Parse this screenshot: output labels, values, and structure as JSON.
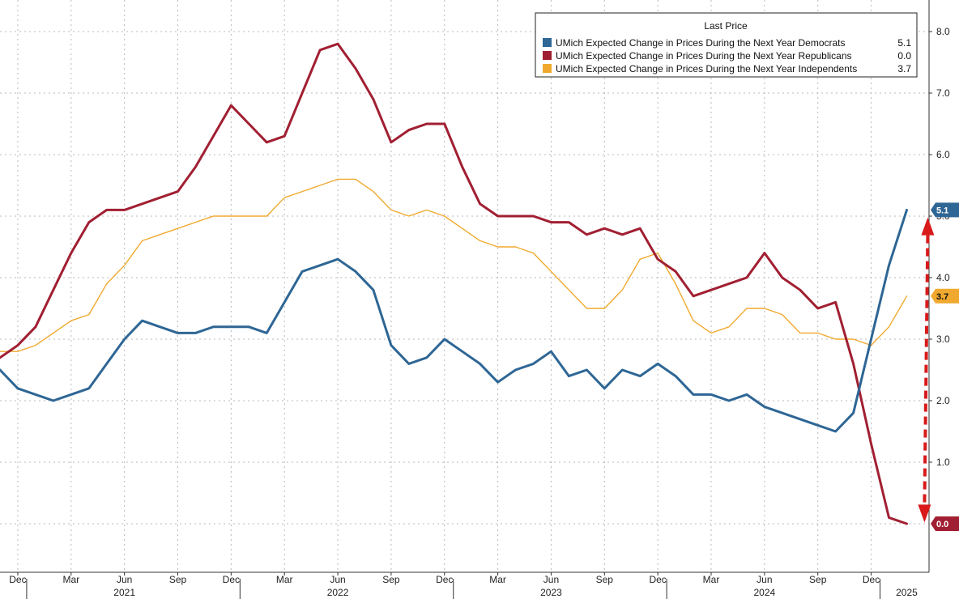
{
  "legend": {
    "title": "Last Price"
  },
  "colors": {
    "democrats": "#2e6695",
    "republicans": "#a11f32",
    "independents": "#f0a92e",
    "arrow": "#d81a1a"
  },
  "chart_data": {
    "type": "line",
    "title": "",
    "xlabel": "",
    "ylabel": "",
    "ylim": [
      -0.5,
      8.5
    ],
    "yticks": [
      1.0,
      2.0,
      3.0,
      4.0,
      5.0,
      6.0,
      7.0,
      8.0
    ],
    "ytick_labels": [
      "1.0",
      "2.0",
      "3.0",
      "4.0",
      "5.0",
      "6.0",
      "7.0",
      "8.0"
    ],
    "grid": true,
    "legend_position": "top-right",
    "x_month_labels": [
      {
        "date": "2020-12",
        "label": "Dec"
      },
      {
        "date": "2021-03",
        "label": "Mar"
      },
      {
        "date": "2021-06",
        "label": "Jun"
      },
      {
        "date": "2021-09",
        "label": "Sep"
      },
      {
        "date": "2021-12",
        "label": "Dec"
      },
      {
        "date": "2022-03",
        "label": "Mar"
      },
      {
        "date": "2022-06",
        "label": "Jun"
      },
      {
        "date": "2022-09",
        "label": "Sep"
      },
      {
        "date": "2022-12",
        "label": "Dec"
      },
      {
        "date": "2023-03",
        "label": "Mar"
      },
      {
        "date": "2023-06",
        "label": "Jun"
      },
      {
        "date": "2023-09",
        "label": "Sep"
      },
      {
        "date": "2023-12",
        "label": "Dec"
      },
      {
        "date": "2024-03",
        "label": "Mar"
      },
      {
        "date": "2024-06",
        "label": "Jun"
      },
      {
        "date": "2024-09",
        "label": "Sep"
      },
      {
        "date": "2024-12",
        "label": "Dec"
      }
    ],
    "x_year_labels": [
      {
        "date": "2021-06",
        "label": "2021"
      },
      {
        "date": "2022-06",
        "label": "2022"
      },
      {
        "date": "2023-06",
        "label": "2023"
      },
      {
        "date": "2024-06",
        "label": "2024"
      },
      {
        "date": "2025-02",
        "label": "2025"
      }
    ],
    "series": [
      {
        "name": "UMich Expected Change in Prices During the Next Year Democrats",
        "key": "democrats",
        "last_price": "5.1",
        "line_width": 3,
        "points": [
          [
            "2020-11",
            2.5
          ],
          [
            "2020-12",
            2.2
          ],
          [
            "2021-01",
            2.1
          ],
          [
            "2021-02",
            2.0
          ],
          [
            "2021-03",
            2.1
          ],
          [
            "2021-04",
            2.2
          ],
          [
            "2021-05",
            2.6
          ],
          [
            "2021-06",
            3.0
          ],
          [
            "2021-07",
            3.3
          ],
          [
            "2021-08",
            3.2
          ],
          [
            "2021-09",
            3.1
          ],
          [
            "2021-10",
            3.1
          ],
          [
            "2021-11",
            3.2
          ],
          [
            "2021-12",
            3.2
          ],
          [
            "2022-01",
            3.2
          ],
          [
            "2022-02",
            3.1
          ],
          [
            "2022-03",
            3.6
          ],
          [
            "2022-04",
            4.1
          ],
          [
            "2022-05",
            4.2
          ],
          [
            "2022-06",
            4.3
          ],
          [
            "2022-07",
            4.1
          ],
          [
            "2022-08",
            3.8
          ],
          [
            "2022-09",
            2.9
          ],
          [
            "2022-10",
            2.6
          ],
          [
            "2022-11",
            2.7
          ],
          [
            "2022-12",
            3.0
          ],
          [
            "2023-01",
            2.8
          ],
          [
            "2023-02",
            2.6
          ],
          [
            "2023-03",
            2.3
          ],
          [
            "2023-04",
            2.5
          ],
          [
            "2023-05",
            2.6
          ],
          [
            "2023-06",
            2.8
          ],
          [
            "2023-07",
            2.4
          ],
          [
            "2023-08",
            2.5
          ],
          [
            "2023-09",
            2.2
          ],
          [
            "2023-10",
            2.5
          ],
          [
            "2023-11",
            2.4
          ],
          [
            "2023-12",
            2.6
          ],
          [
            "2024-01",
            2.4
          ],
          [
            "2024-02",
            2.1
          ],
          [
            "2024-03",
            2.1
          ],
          [
            "2024-04",
            2.0
          ],
          [
            "2024-05",
            2.1
          ],
          [
            "2024-06",
            1.9
          ],
          [
            "2024-07",
            1.8
          ],
          [
            "2024-08",
            1.7
          ],
          [
            "2024-09",
            1.6
          ],
          [
            "2024-10",
            1.5
          ],
          [
            "2024-11",
            1.8
          ],
          [
            "2024-12",
            3.0
          ],
          [
            "2025-01",
            4.2
          ],
          [
            "2025-02",
            5.1
          ]
        ]
      },
      {
        "name": "UMich Expected Change in Prices During the Next Year Republicans",
        "key": "republicans",
        "last_price": "0.0",
        "line_width": 3,
        "points": [
          [
            "2020-11",
            2.7
          ],
          [
            "2020-12",
            2.9
          ],
          [
            "2021-01",
            3.2
          ],
          [
            "2021-02",
            3.8
          ],
          [
            "2021-03",
            4.4
          ],
          [
            "2021-04",
            4.9
          ],
          [
            "2021-05",
            5.1
          ],
          [
            "2021-06",
            5.1
          ],
          [
            "2021-07",
            5.2
          ],
          [
            "2021-08",
            5.3
          ],
          [
            "2021-09",
            5.4
          ],
          [
            "2021-10",
            5.8
          ],
          [
            "2021-11",
            6.3
          ],
          [
            "2021-12",
            6.8
          ],
          [
            "2022-01",
            6.5
          ],
          [
            "2022-02",
            6.2
          ],
          [
            "2022-03",
            6.3
          ],
          [
            "2022-04",
            7.0
          ],
          [
            "2022-05",
            7.7
          ],
          [
            "2022-06",
            7.8
          ],
          [
            "2022-07",
            7.4
          ],
          [
            "2022-08",
            6.9
          ],
          [
            "2022-09",
            6.2
          ],
          [
            "2022-10",
            6.4
          ],
          [
            "2022-11",
            6.5
          ],
          [
            "2022-12",
            6.5
          ],
          [
            "2023-01",
            5.8
          ],
          [
            "2023-02",
            5.2
          ],
          [
            "2023-03",
            5.0
          ],
          [
            "2023-04",
            5.0
          ],
          [
            "2023-05",
            5.0
          ],
          [
            "2023-06",
            4.9
          ],
          [
            "2023-07",
            4.9
          ],
          [
            "2023-08",
            4.7
          ],
          [
            "2023-09",
            4.8
          ],
          [
            "2023-10",
            4.7
          ],
          [
            "2023-11",
            4.8
          ],
          [
            "2023-12",
            4.3
          ],
          [
            "2024-01",
            4.1
          ],
          [
            "2024-02",
            3.7
          ],
          [
            "2024-03",
            3.8
          ],
          [
            "2024-04",
            3.9
          ],
          [
            "2024-05",
            4.0
          ],
          [
            "2024-06",
            4.4
          ],
          [
            "2024-07",
            4.0
          ],
          [
            "2024-08",
            3.8
          ],
          [
            "2024-09",
            3.5
          ],
          [
            "2024-10",
            3.6
          ],
          [
            "2024-11",
            2.6
          ],
          [
            "2024-12",
            1.3
          ],
          [
            "2025-01",
            0.1
          ],
          [
            "2025-02",
            0.0
          ]
        ]
      },
      {
        "name": "UMich Expected Change in Prices During the Next Year Independents",
        "key": "independents",
        "last_price": "3.7",
        "line_width": 1.4,
        "points": [
          [
            "2020-11",
            2.8
          ],
          [
            "2020-12",
            2.8
          ],
          [
            "2021-01",
            2.9
          ],
          [
            "2021-02",
            3.1
          ],
          [
            "2021-03",
            3.3
          ],
          [
            "2021-04",
            3.4
          ],
          [
            "2021-05",
            3.9
          ],
          [
            "2021-06",
            4.2
          ],
          [
            "2021-07",
            4.6
          ],
          [
            "2021-08",
            4.7
          ],
          [
            "2021-09",
            4.8
          ],
          [
            "2021-10",
            4.9
          ],
          [
            "2021-11",
            5.0
          ],
          [
            "2021-12",
            5.0
          ],
          [
            "2022-01",
            5.0
          ],
          [
            "2022-02",
            5.0
          ],
          [
            "2022-03",
            5.3
          ],
          [
            "2022-04",
            5.4
          ],
          [
            "2022-05",
            5.5
          ],
          [
            "2022-06",
            5.6
          ],
          [
            "2022-07",
            5.6
          ],
          [
            "2022-08",
            5.4
          ],
          [
            "2022-09",
            5.1
          ],
          [
            "2022-10",
            5.0
          ],
          [
            "2022-11",
            5.1
          ],
          [
            "2022-12",
            5.0
          ],
          [
            "2023-01",
            4.8
          ],
          [
            "2023-02",
            4.6
          ],
          [
            "2023-03",
            4.5
          ],
          [
            "2023-04",
            4.5
          ],
          [
            "2023-05",
            4.4
          ],
          [
            "2023-06",
            4.1
          ],
          [
            "2023-07",
            3.8
          ],
          [
            "2023-08",
            3.5
          ],
          [
            "2023-09",
            3.5
          ],
          [
            "2023-10",
            3.8
          ],
          [
            "2023-11",
            4.3
          ],
          [
            "2023-12",
            4.4
          ],
          [
            "2024-01",
            3.9
          ],
          [
            "2024-02",
            3.3
          ],
          [
            "2024-03",
            3.1
          ],
          [
            "2024-04",
            3.2
          ],
          [
            "2024-05",
            3.5
          ],
          [
            "2024-06",
            3.5
          ],
          [
            "2024-07",
            3.4
          ],
          [
            "2024-08",
            3.1
          ],
          [
            "2024-09",
            3.1
          ],
          [
            "2024-10",
            3.0
          ],
          [
            "2024-11",
            3.0
          ],
          [
            "2024-12",
            2.9
          ],
          [
            "2025-01",
            3.2
          ],
          [
            "2025-02",
            3.7
          ]
        ]
      }
    ],
    "annotations": [
      {
        "type": "double-arrow",
        "style": "dashed",
        "from": [
          "2025-03",
          4.9
        ],
        "to": [
          "2025-03",
          0.1
        ]
      }
    ]
  }
}
